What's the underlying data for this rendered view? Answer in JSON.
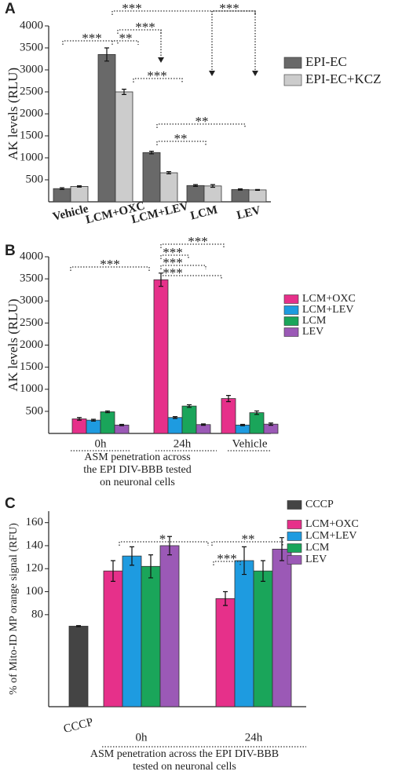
{
  "chart_data": [
    {
      "type": "bar",
      "panel_label": "A",
      "ylabel": "AK levels (RLU)",
      "categories": [
        "Vehicle",
        "LCM+OXC",
        "LCM+LEV",
        "LCM",
        "LEV"
      ],
      "series": [
        {
          "name": "EPI-EC",
          "color": "#696969",
          "values": [
            300,
            3350,
            1120,
            370,
            280
          ],
          "errors": [
            20,
            150,
            30,
            20,
            15
          ]
        },
        {
          "name": "EPI-EC+KCZ",
          "color": "#cccccc",
          "values": [
            350,
            2500,
            660,
            360,
            270
          ],
          "errors": [
            15,
            60,
            25,
            30,
            10
          ]
        }
      ],
      "ylim": [
        0,
        4000
      ],
      "yticks": [
        500,
        1000,
        1500,
        2000,
        2500,
        3000,
        3500,
        4000
      ],
      "annotations": [
        "***",
        "**",
        "***",
        "***",
        "***",
        "***",
        "**",
        "**"
      ]
    },
    {
      "type": "bar",
      "panel_label": "B",
      "ylabel": "AK levels (RLU)",
      "categories": [
        "0h",
        "24h",
        "Vehicle"
      ],
      "series": [
        {
          "name": "LCM+OXC",
          "color": "#e6308a",
          "values": [
            330,
            3480,
            790
          ],
          "errors": [
            30,
            150,
            70
          ]
        },
        {
          "name": "LCM+LEV",
          "color": "#1e9be0",
          "values": [
            300,
            360,
            190
          ],
          "errors": [
            20,
            20,
            15
          ]
        },
        {
          "name": "LCM",
          "color": "#1aa55a",
          "values": [
            490,
            620,
            470
          ],
          "errors": [
            20,
            30,
            40
          ]
        },
        {
          "name": "LEV",
          "color": "#9b59b6",
          "values": [
            190,
            200,
            210
          ],
          "errors": [
            15,
            15,
            25
          ]
        }
      ],
      "ylim": [
        0,
        4000
      ],
      "yticks": [
        500,
        1000,
        1500,
        2000,
        2500,
        3000,
        3500,
        4000
      ],
      "note_lines": [
        "ASM penetration across",
        "the EPI DIV-BBB tested",
        "on neuronal cells"
      ],
      "annotations": [
        "***",
        "***",
        "***",
        "***",
        "***"
      ]
    },
    {
      "type": "bar",
      "panel_label": "C",
      "ylabel": "% of Mito-ID MP orange signal (RFU)",
      "categories": [
        "CCCP",
        "0h",
        "24h"
      ],
      "series": [
        {
          "name": "CCCP",
          "color": "#444444",
          "values": [
            70,
            null,
            null
          ],
          "errors": [
            0.5,
            null,
            null
          ]
        },
        {
          "name": "LCM+OXC",
          "color": "#e6308a",
          "values": [
            null,
            118,
            94
          ],
          "errors": [
            null,
            9,
            6
          ]
        },
        {
          "name": "LCM+LEV",
          "color": "#1e9be0",
          "values": [
            null,
            131,
            127
          ],
          "errors": [
            null,
            8,
            12
          ]
        },
        {
          "name": "LCM",
          "color": "#1aa55a",
          "values": [
            null,
            122,
            118
          ],
          "errors": [
            null,
            10,
            9
          ]
        },
        {
          "name": "LEV",
          "color": "#9b59b6",
          "values": [
            null,
            140,
            137
          ],
          "errors": [
            null,
            8,
            10
          ]
        }
      ],
      "ylim": [
        0,
        170
      ],
      "yticks": [
        80,
        100,
        120,
        140,
        160
      ],
      "note_lines": [
        "ASM penetration across the EPI DIV-BBB",
        "tested on neuronal cells"
      ],
      "annotations": [
        "*",
        "**",
        "***"
      ]
    }
  ]
}
